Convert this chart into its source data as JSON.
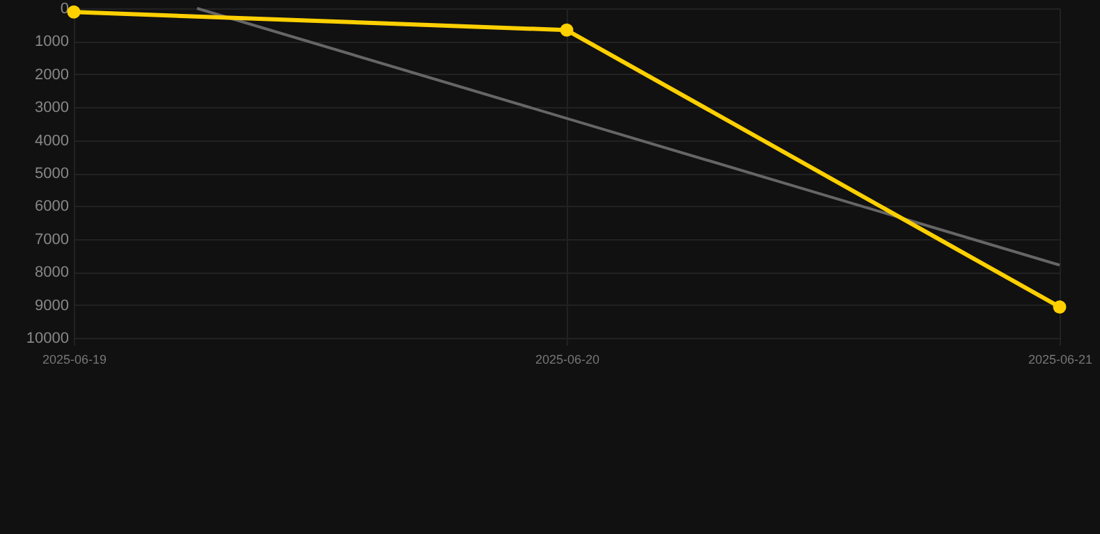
{
  "chart_data": {
    "type": "line",
    "x": [
      "2025-06-19",
      "2025-06-20",
      "2025-06-21"
    ],
    "series": [
      {
        "color": "#ffd000",
        "values": [
          110,
          660,
          9060
        ],
        "marker": "circle"
      },
      {
        "type": "line",
        "color": "#666666",
        "x": [
          "2025-06-19T06:00",
          "2025-06-21"
        ],
        "values": [
          0,
          7790
        ],
        "marker": "none"
      }
    ],
    "xlim": [
      "2025-06-19",
      "2025-06-21"
    ],
    "xticks": [
      "2025-06-19",
      "2025-06-20",
      "2025-06-21"
    ],
    "ylim": [
      10000,
      0
    ],
    "yticks": [
      0,
      1000,
      2000,
      3000,
      4000,
      5000,
      6000,
      7000,
      8000,
      9000,
      10000
    ],
    "grid": true
  }
}
